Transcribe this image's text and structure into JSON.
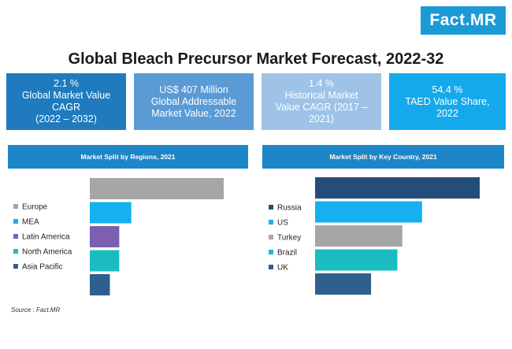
{
  "logo": {
    "part1": "Fact",
    "dot": ".",
    "part2": "MR"
  },
  "title": "Global Bleach Precursor Market Forecast, 2022-32",
  "kpis": [
    {
      "lines": [
        "2.1 %",
        "Global Market Value",
        "CAGR",
        "(2022 – 2032)"
      ],
      "color": "#1f7bbd"
    },
    {
      "lines": [
        "US$ 407 Million",
        "Global Addressable",
        "Market Value, 2022"
      ],
      "color": "#5b9bd5"
    },
    {
      "lines": [
        "1.4 %",
        "Historical Market",
        "Value CAGR (2017 –",
        "2021)"
      ],
      "color": "#9ec3e6"
    },
    {
      "lines": [
        "54.4 %",
        "TAED Value Share,",
        "2022"
      ],
      "color": "#14a9ea"
    }
  ],
  "source": "Source : Fact.MR",
  "chart_data": [
    {
      "type": "bar",
      "orientation": "horizontal",
      "title": "Market Split by Regions, 2021",
      "categories": [
        "Europe",
        "MEA",
        "Latin America",
        "North America",
        "Asia Pacific"
      ],
      "values": [
        100,
        31,
        22,
        22,
        15
      ],
      "colors": [
        "#a6a6a6",
        "#14b1ee",
        "#7c5fb0",
        "#1bbcc1",
        "#2e5f8e"
      ],
      "legend": "left",
      "grid": false
    },
    {
      "type": "bar",
      "orientation": "horizontal",
      "title": "Market Split by Key Country, 2021",
      "categories": [
        "Russia",
        "US",
        "Turkey",
        "Brazil",
        "UK"
      ],
      "values": [
        100,
        65,
        53,
        50,
        34
      ],
      "colors": [
        "#244d7a",
        "#14b1ee",
        "#a6a6a6",
        "#1bbcc1",
        "#2e5f8e"
      ],
      "legend": "left",
      "grid": false
    }
  ]
}
